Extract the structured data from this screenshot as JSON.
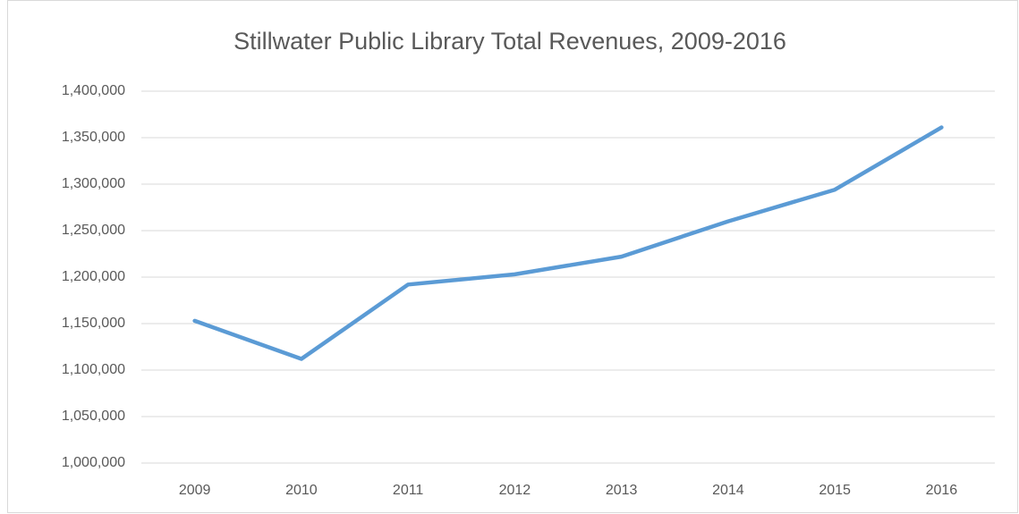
{
  "chart_data": {
    "type": "line",
    "title": "Stillwater Public Library Total Revenues, 2009-2016",
    "categories": [
      "2009",
      "2010",
      "2011",
      "2012",
      "2013",
      "2014",
      "2015",
      "2016"
    ],
    "series": [
      {
        "name": "Total Revenues",
        "color": "#5b9bd5",
        "values": [
          1153000,
          1112000,
          1192000,
          1203000,
          1222000,
          1260000,
          1294000,
          1361000
        ]
      }
    ],
    "ylim": [
      1000000,
      1400000
    ],
    "yticks": [
      {
        "value": 1000000,
        "label": "1,000,000"
      },
      {
        "value": 1050000,
        "label": "1,050,000"
      },
      {
        "value": 1100000,
        "label": "1,100,000"
      },
      {
        "value": 1150000,
        "label": "1,150,000"
      },
      {
        "value": 1200000,
        "label": "1,200,000"
      },
      {
        "value": 1250000,
        "label": "1,250,000"
      },
      {
        "value": 1300000,
        "label": "1,300,000"
      },
      {
        "value": 1350000,
        "label": "1,350,000"
      },
      {
        "value": 1400000,
        "label": "1,400,000"
      }
    ],
    "grid": true,
    "legend": false
  }
}
